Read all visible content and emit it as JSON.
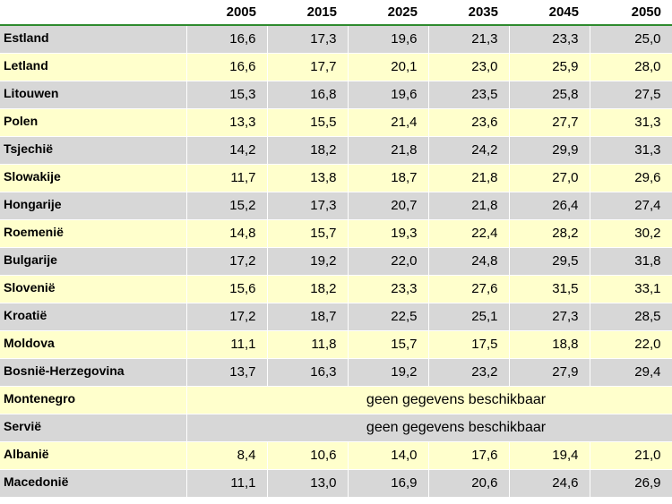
{
  "table": {
    "columns": [
      "",
      "2005",
      "2015",
      "2025",
      "2035",
      "2045",
      "2050"
    ],
    "rows": [
      {
        "country": "Estland",
        "values": [
          "16,6",
          "17,3",
          "19,6",
          "21,3",
          "23,3",
          "25,0"
        ]
      },
      {
        "country": "Letland",
        "values": [
          "16,6",
          "17,7",
          "20,1",
          "23,0",
          "25,9",
          "28,0"
        ]
      },
      {
        "country": "Litouwen",
        "values": [
          "15,3",
          "16,8",
          "19,6",
          "23,5",
          "25,8",
          "27,5"
        ]
      },
      {
        "country": "Polen",
        "values": [
          "13,3",
          "15,5",
          "21,4",
          "23,6",
          "27,7",
          "31,3"
        ]
      },
      {
        "country": "Tsjechië",
        "values": [
          "14,2",
          "18,2",
          "21,8",
          "24,2",
          "29,9",
          "31,3"
        ]
      },
      {
        "country": "Slowakije",
        "values": [
          "11,7",
          "13,8",
          "18,7",
          "21,8",
          "27,0",
          "29,6"
        ]
      },
      {
        "country": "Hongarije",
        "values": [
          "15,2",
          "17,3",
          "20,7",
          "21,8",
          "26,4",
          "27,4"
        ]
      },
      {
        "country": "Roemenië",
        "values": [
          "14,8",
          "15,7",
          "19,3",
          "22,4",
          "28,2",
          "30,2"
        ]
      },
      {
        "country": "Bulgarije",
        "values": [
          "17,2",
          "19,2",
          "22,0",
          "24,8",
          "29,5",
          "31,8"
        ]
      },
      {
        "country": "Slovenië",
        "values": [
          "15,6",
          "18,2",
          "23,3",
          "27,6",
          "31,5",
          "33,1"
        ]
      },
      {
        "country": "Kroatië",
        "values": [
          "17,2",
          "18,7",
          "22,5",
          "25,1",
          "27,3",
          "28,5"
        ]
      },
      {
        "country": "Moldova",
        "values": [
          "11,1",
          "11,8",
          "15,7",
          "17,5",
          "18,8",
          "22,0"
        ]
      },
      {
        "country": "Bosnië-Herzegovina",
        "values": [
          "13,7",
          "16,3",
          "19,2",
          "23,2",
          "27,9",
          "29,4"
        ]
      },
      {
        "country": "Montenegro",
        "note": "geen gegevens beschikbaar"
      },
      {
        "country": "Servië",
        "note": "geen gegevens beschikbaar"
      },
      {
        "country": "Albanië",
        "values": [
          "8,4",
          "10,6",
          "14,0",
          "17,6",
          "19,4",
          "21,0"
        ]
      },
      {
        "country": "Macedonië",
        "values": [
          "11,1",
          "13,0",
          "16,9",
          "20,6",
          "24,6",
          "26,9"
        ]
      }
    ]
  },
  "colors": {
    "row_gray": "#d7d7d7",
    "row_yellow": "#ffffcc",
    "header_rule": "#2e8b2e"
  }
}
